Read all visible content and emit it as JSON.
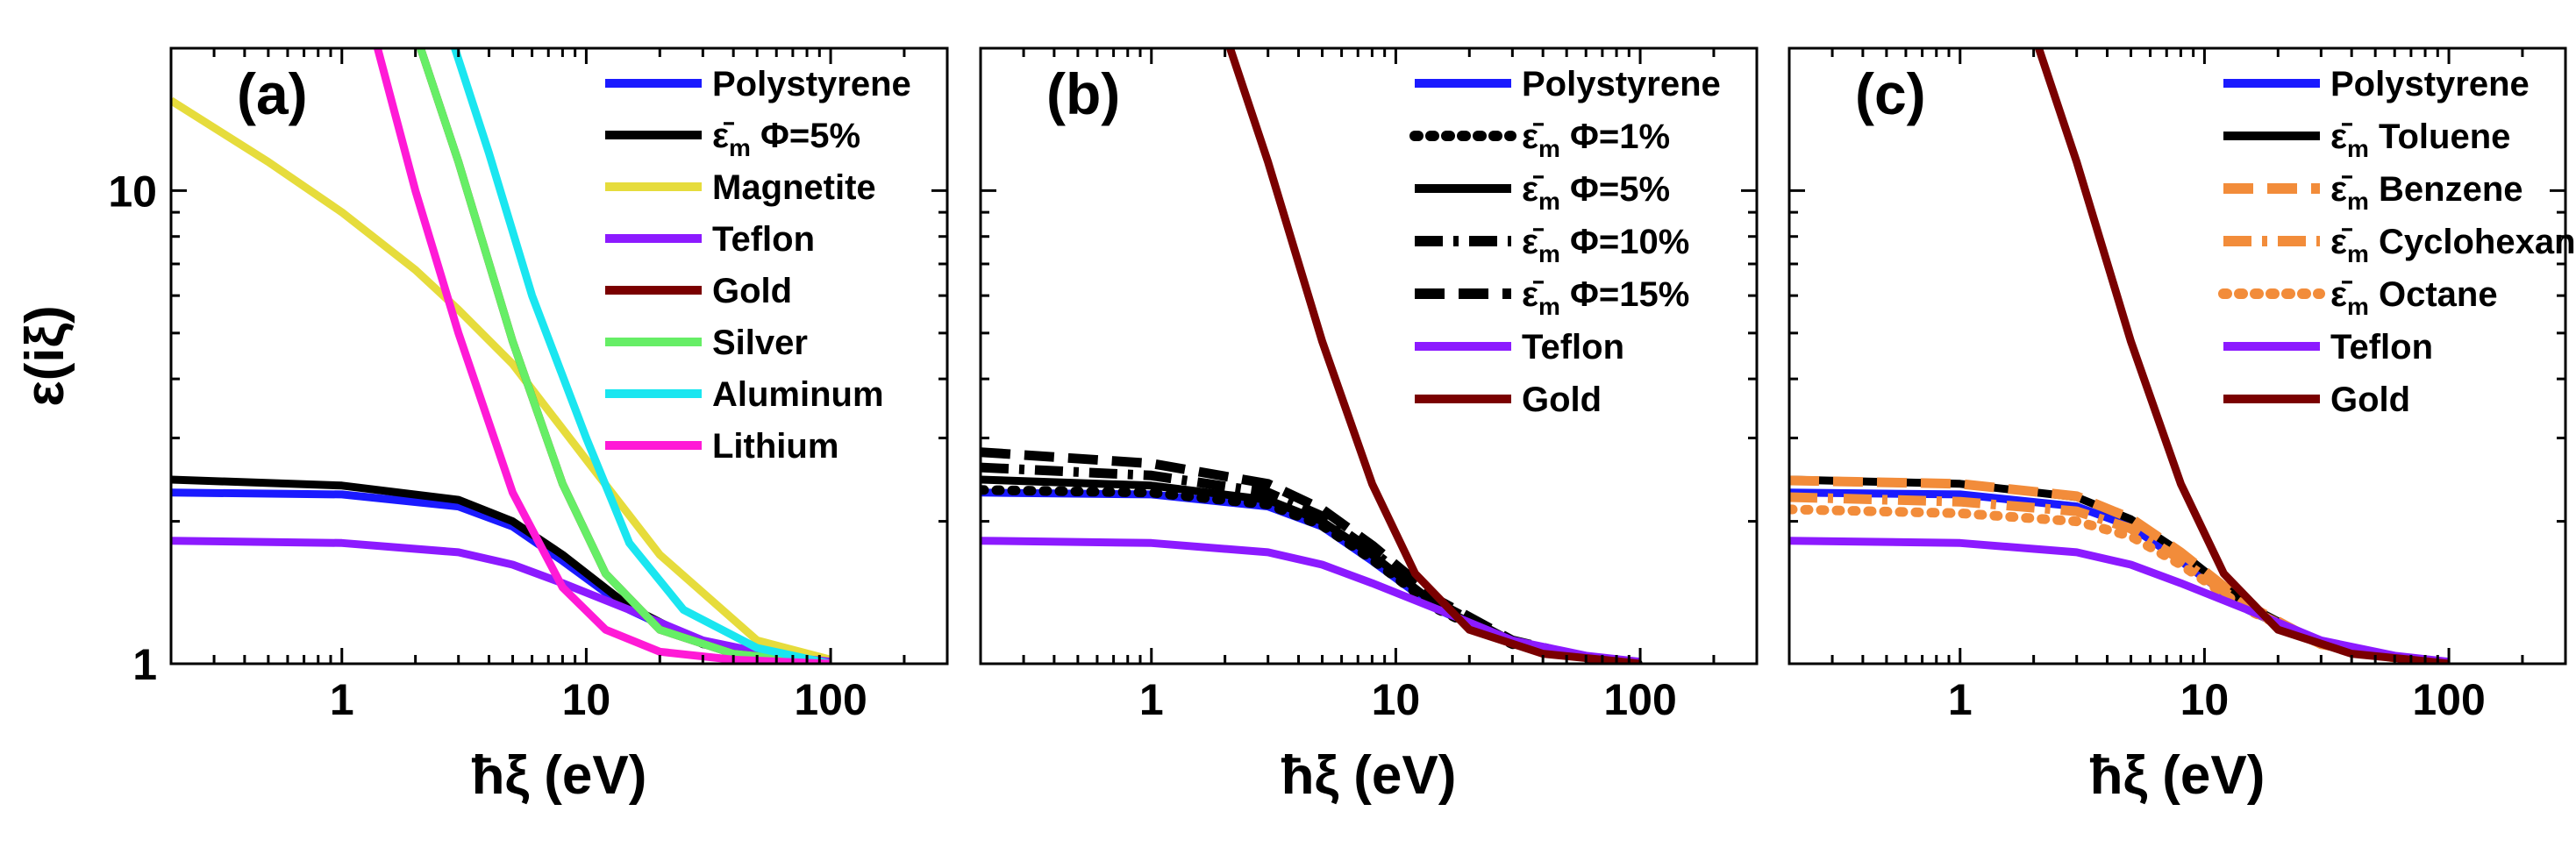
{
  "colors": {
    "polystyrene": "#1a1aff",
    "mixture": "#000000",
    "magnetite": "#e6dc3c",
    "teflon": "#8c1aff",
    "gold": "#7a0000",
    "silver": "#66ee66",
    "aluminum": "#1ae6f0",
    "lithium": "#ff1ad6",
    "solvent": "#f28c3a"
  },
  "chart_data": [
    {
      "type": "line",
      "panel_label": "(a)",
      "xscale": "log",
      "yscale": "log",
      "xlabel": "ħξ (eV)",
      "ylabel": "ε(iξ)",
      "xlim": [
        0.2,
        300
      ],
      "ylim": [
        1,
        20
      ],
      "xticks": [
        1,
        10,
        100
      ],
      "xtick_labels": [
        "1",
        "10",
        "100"
      ],
      "yticks": [
        1,
        10
      ],
      "ytick_labels": [
        "1",
        "10"
      ],
      "legend_position": "top-right",
      "series": [
        {
          "key": "polystyrene",
          "label_main": "Polystyrene",
          "label_sub": "",
          "label_tail": "",
          "color_key": "polystyrene",
          "dash": "solid",
          "x": [
            0.2,
            1,
            3,
            5,
            8,
            15,
            30,
            60,
            100
          ],
          "y": [
            2.3,
            2.28,
            2.15,
            1.95,
            1.65,
            1.3,
            1.1,
            1.03,
            1.0
          ]
        },
        {
          "key": "mixture-5",
          "label_main": "ε̄",
          "label_sub": "m",
          "label_tail": " Φ=5%",
          "color_key": "mixture",
          "dash": "solid",
          "x": [
            0.2,
            1,
            3,
            5,
            8,
            15,
            30,
            60,
            100
          ],
          "y": [
            2.45,
            2.38,
            2.22,
            2.0,
            1.7,
            1.32,
            1.1,
            1.03,
            1.0
          ]
        },
        {
          "key": "magnetite",
          "label_main": "Magnetite",
          "label_sub": "",
          "label_tail": "",
          "color_key": "magnetite",
          "dash": "solid",
          "x": [
            0.2,
            0.5,
            1,
            2,
            3,
            5,
            10,
            20,
            50,
            100
          ],
          "y": [
            15.5,
            11.5,
            9.0,
            6.8,
            5.6,
            4.3,
            2.7,
            1.7,
            1.12,
            1.02
          ]
        },
        {
          "key": "teflon",
          "label_main": "Teflon",
          "label_sub": "",
          "label_tail": "",
          "color_key": "teflon",
          "dash": "solid",
          "x": [
            0.2,
            1,
            3,
            5,
            8,
            15,
            30,
            60,
            100
          ],
          "y": [
            1.82,
            1.8,
            1.72,
            1.62,
            1.48,
            1.3,
            1.12,
            1.04,
            1.01
          ]
        },
        {
          "key": "gold",
          "label_main": "Gold",
          "label_sub": "",
          "label_tail": "",
          "color_key": "gold",
          "dash": "solid",
          "x": [
            2.1,
            3,
            5,
            8,
            12,
            20,
            40,
            70,
            100
          ],
          "y": [
            20,
            11.5,
            4.8,
            2.4,
            1.55,
            1.18,
            1.05,
            1.02,
            1.0
          ]
        },
        {
          "key": "silver",
          "label_main": "Silver",
          "label_sub": "",
          "label_tail": "",
          "color_key": "silver",
          "dash": "solid",
          "x": [
            2.1,
            3,
            5,
            8,
            12,
            20,
            40,
            70,
            100
          ],
          "y": [
            20,
            11.5,
            4.8,
            2.4,
            1.55,
            1.18,
            1.05,
            1.02,
            1.0
          ]
        },
        {
          "key": "aluminum",
          "label_main": "Aluminum",
          "label_sub": "",
          "label_tail": "",
          "color_key": "aluminum",
          "dash": "solid",
          "x": [
            2.9,
            4,
            6,
            10,
            15,
            25,
            50,
            100
          ],
          "y": [
            20,
            12,
            6.0,
            3.0,
            1.8,
            1.3,
            1.08,
            1.0
          ]
        },
        {
          "key": "lithium",
          "label_main": "Lithium",
          "label_sub": "",
          "label_tail": "",
          "color_key": "lithium",
          "dash": "solid",
          "x": [
            1.4,
            2,
            3,
            5,
            8,
            12,
            20,
            40,
            100
          ],
          "y": [
            20,
            10,
            5.0,
            2.3,
            1.45,
            1.18,
            1.06,
            1.02,
            1.0
          ]
        }
      ]
    },
    {
      "type": "line",
      "panel_label": "(b)",
      "xscale": "log",
      "yscale": "log",
      "xlabel": "ħξ (eV)",
      "ylabel": "",
      "xlim": [
        0.2,
        300
      ],
      "ylim": [
        1,
        20
      ],
      "xticks": [
        1,
        10,
        100
      ],
      "xtick_labels": [
        "1",
        "10",
        "100"
      ],
      "yticks": [
        1,
        10
      ],
      "ytick_labels": [
        "",
        ""
      ],
      "legend_position": "top-right",
      "series": [
        {
          "key": "polystyrene",
          "label_main": "Polystyrene",
          "label_sub": "",
          "label_tail": "",
          "color_key": "polystyrene",
          "dash": "solid",
          "x": [
            0.2,
            1,
            3,
            5,
            8,
            15,
            30,
            60,
            100
          ],
          "y": [
            2.3,
            2.28,
            2.15,
            1.95,
            1.65,
            1.3,
            1.1,
            1.03,
            1.0
          ]
        },
        {
          "key": "mixture-1",
          "label_main": "ε̄",
          "label_sub": "m",
          "label_tail": " Φ=1%",
          "color_key": "mixture",
          "dash": "dot",
          "x": [
            0.2,
            1,
            3,
            5,
            8,
            15,
            30,
            60,
            100
          ],
          "y": [
            2.33,
            2.3,
            2.17,
            1.96,
            1.66,
            1.3,
            1.1,
            1.03,
            1.0
          ]
        },
        {
          "key": "mixture-5",
          "label_main": "ε̄",
          "label_sub": "m",
          "label_tail": " Φ=5%",
          "color_key": "mixture",
          "dash": "solid",
          "x": [
            0.2,
            1,
            3,
            5,
            8,
            15,
            30,
            60,
            100
          ],
          "y": [
            2.45,
            2.38,
            2.22,
            2.0,
            1.7,
            1.32,
            1.1,
            1.03,
            1.0
          ]
        },
        {
          "key": "mixture-10",
          "label_main": "ε̄",
          "label_sub": "m",
          "label_tail": " Φ=10%",
          "color_key": "mixture",
          "dash": "dashdot",
          "x": [
            0.2,
            1,
            3,
            5,
            8,
            15,
            30,
            60,
            100
          ],
          "y": [
            2.6,
            2.5,
            2.3,
            2.05,
            1.73,
            1.34,
            1.11,
            1.03,
            1.0
          ]
        },
        {
          "key": "mixture-15",
          "label_main": "ε̄",
          "label_sub": "m",
          "label_tail": " Φ=15%",
          "color_key": "mixture",
          "dash": "dash",
          "x": [
            0.2,
            1,
            3,
            5,
            8,
            15,
            30,
            60,
            100
          ],
          "y": [
            2.8,
            2.65,
            2.4,
            2.12,
            1.78,
            1.36,
            1.12,
            1.03,
            1.0
          ]
        },
        {
          "key": "teflon",
          "label_main": "Teflon",
          "label_sub": "",
          "label_tail": "",
          "color_key": "teflon",
          "dash": "solid",
          "x": [
            0.2,
            1,
            3,
            5,
            8,
            15,
            30,
            60,
            100
          ],
          "y": [
            1.82,
            1.8,
            1.72,
            1.62,
            1.48,
            1.3,
            1.12,
            1.04,
            1.01
          ]
        },
        {
          "key": "gold",
          "label_main": "Gold",
          "label_sub": "",
          "label_tail": "",
          "color_key": "gold",
          "dash": "solid",
          "x": [
            2.1,
            3,
            5,
            8,
            12,
            20,
            40,
            70,
            100
          ],
          "y": [
            20,
            11.5,
            4.8,
            2.4,
            1.55,
            1.18,
            1.05,
            1.02,
            1.0
          ]
        }
      ]
    },
    {
      "type": "line",
      "panel_label": "(c)",
      "xscale": "log",
      "yscale": "log",
      "xlabel": "ħξ (eV)",
      "ylabel": "",
      "xlim": [
        0.2,
        300
      ],
      "ylim": [
        1,
        20
      ],
      "xticks": [
        1,
        10,
        100
      ],
      "xtick_labels": [
        "1",
        "10",
        "100"
      ],
      "yticks": [
        1,
        10
      ],
      "ytick_labels": [
        "",
        ""
      ],
      "legend_position": "top-right",
      "series": [
        {
          "key": "polystyrene",
          "label_main": "Polystyrene",
          "label_sub": "",
          "label_tail": "",
          "color_key": "polystyrene",
          "dash": "solid",
          "x": [
            0.2,
            1,
            3,
            5,
            8,
            15,
            30,
            60,
            100
          ],
          "y": [
            2.3,
            2.28,
            2.15,
            1.95,
            1.65,
            1.3,
            1.1,
            1.03,
            1.0
          ]
        },
        {
          "key": "toluene",
          "label_main": "ε̄",
          "label_sub": "m",
          "label_tail": " Toluene",
          "color_key": "mixture",
          "dash": "solid",
          "x": [
            0.2,
            1,
            3,
            5,
            8,
            15,
            30,
            60,
            100
          ],
          "y": [
            2.45,
            2.4,
            2.25,
            2.02,
            1.72,
            1.33,
            1.1,
            1.03,
            1.0
          ]
        },
        {
          "key": "benzene",
          "label_main": "ε̄",
          "label_sub": "m",
          "label_tail": " Benzene",
          "color_key": "solvent",
          "dash": "dash",
          "x": [
            0.2,
            1,
            3,
            5,
            8,
            15,
            30,
            60,
            100
          ],
          "y": [
            2.44,
            2.4,
            2.26,
            2.03,
            1.72,
            1.33,
            1.1,
            1.03,
            1.0
          ]
        },
        {
          "key": "cyclohexane",
          "label_main": "ε̄",
          "label_sub": "m",
          "label_tail": " Cyclohexane",
          "color_key": "solvent",
          "dash": "dashdot",
          "x": [
            0.2,
            1,
            3,
            5,
            8,
            15,
            30,
            60,
            100
          ],
          "y": [
            2.25,
            2.2,
            2.1,
            1.93,
            1.66,
            1.31,
            1.1,
            1.03,
            1.0
          ]
        },
        {
          "key": "octane",
          "label_main": "ε̄",
          "label_sub": "m",
          "label_tail": " Octane",
          "color_key": "solvent",
          "dash": "dot",
          "x": [
            0.2,
            1,
            3,
            5,
            8,
            15,
            30,
            60,
            100
          ],
          "y": [
            2.12,
            2.08,
            2.0,
            1.86,
            1.62,
            1.3,
            1.1,
            1.03,
            1.0
          ]
        },
        {
          "key": "teflon",
          "label_main": "Teflon",
          "label_sub": "",
          "label_tail": "",
          "color_key": "teflon",
          "dash": "solid",
          "x": [
            0.2,
            1,
            3,
            5,
            8,
            15,
            30,
            60,
            100
          ],
          "y": [
            1.82,
            1.8,
            1.72,
            1.62,
            1.48,
            1.3,
            1.12,
            1.04,
            1.01
          ]
        },
        {
          "key": "gold",
          "label_main": "Gold",
          "label_sub": "",
          "label_tail": "",
          "color_key": "gold",
          "dash": "solid",
          "x": [
            2.1,
            3,
            5,
            8,
            12,
            20,
            40,
            70,
            100
          ],
          "y": [
            20,
            11.5,
            4.8,
            2.4,
            1.55,
            1.18,
            1.05,
            1.02,
            1.0
          ]
        }
      ]
    }
  ]
}
